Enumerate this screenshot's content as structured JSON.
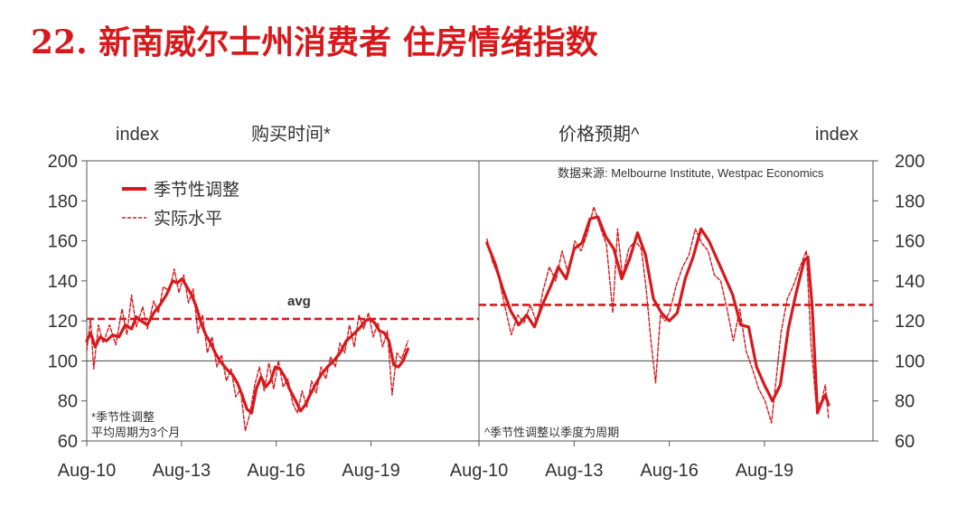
{
  "page": {
    "title": "22. 新南威尔士州消费者 住房情绪指数",
    "accent_color": "#d7191c",
    "axis_color": "#555555"
  },
  "chart_data": [
    {
      "type": "line",
      "title": "购买时间*",
      "ylabel": "index",
      "ylim": [
        60,
        200
      ],
      "yticks": [
        60,
        80,
        100,
        120,
        140,
        160,
        180,
        200
      ],
      "xlim": [
        2010.58,
        2023.0
      ],
      "xticks": [
        {
          "x": 2010.58,
          "label": "Aug-10"
        },
        {
          "x": 2013.58,
          "label": "Aug-13"
        },
        {
          "x": 2016.58,
          "label": "Aug-16"
        },
        {
          "x": 2019.58,
          "label": "Aug-19"
        }
      ],
      "reference_lines": [
        {
          "y": 100,
          "style": "solid"
        },
        {
          "y": 121,
          "style": "dashed",
          "label": "avg"
        }
      ],
      "legend": {
        "placement": "top-left",
        "entries": [
          "季节性调整",
          "实际水平"
        ]
      },
      "notes": [
        "*季节性调整",
        "平均周期为3个月"
      ],
      "series": [
        {
          "name": "季节性调整",
          "style": "solid",
          "points": [
            [
              2010.58,
              110
            ],
            [
              2010.7,
              114
            ],
            [
              2010.85,
              107
            ],
            [
              2011.0,
              112
            ],
            [
              2011.2,
              110
            ],
            [
              2011.4,
              113
            ],
            [
              2011.6,
              112
            ],
            [
              2011.8,
              118
            ],
            [
              2012.0,
              116
            ],
            [
              2012.15,
              122
            ],
            [
              2012.3,
              120
            ],
            [
              2012.5,
              118
            ],
            [
              2012.7,
              124
            ],
            [
              2012.9,
              128
            ],
            [
              2013.1,
              133
            ],
            [
              2013.3,
              140
            ],
            [
              2013.45,
              139
            ],
            [
              2013.6,
              141
            ],
            [
              2013.75,
              137
            ],
            [
              2013.9,
              133
            ],
            [
              2014.05,
              127
            ],
            [
              2014.2,
              119
            ],
            [
              2014.35,
              113
            ],
            [
              2014.5,
              109
            ],
            [
              2014.65,
              104
            ],
            [
              2014.8,
              100
            ],
            [
              2015.0,
              96
            ],
            [
              2015.2,
              93
            ],
            [
              2015.35,
              89
            ],
            [
              2015.5,
              83
            ],
            [
              2015.65,
              76
            ],
            [
              2015.8,
              74
            ],
            [
              2015.95,
              86
            ],
            [
              2016.1,
              92
            ],
            [
              2016.25,
              87
            ],
            [
              2016.4,
              90
            ],
            [
              2016.55,
              97
            ],
            [
              2016.7,
              96
            ],
            [
              2016.85,
              92
            ],
            [
              2017.0,
              86
            ],
            [
              2017.2,
              80
            ],
            [
              2017.35,
              75
            ],
            [
              2017.5,
              78
            ],
            [
              2017.65,
              83
            ],
            [
              2017.85,
              89
            ],
            [
              2018.0,
              93
            ],
            [
              2018.2,
              97
            ],
            [
              2018.4,
              100
            ],
            [
              2018.6,
              104
            ],
            [
              2018.8,
              110
            ],
            [
              2019.0,
              113
            ],
            [
              2019.2,
              116
            ],
            [
              2019.4,
              120
            ],
            [
              2019.55,
              121
            ],
            [
              2019.7,
              119
            ],
            [
              2019.85,
              115
            ],
            [
              2020.0,
              114
            ],
            [
              2020.15,
              110
            ],
            [
              2020.3,
              98
            ],
            [
              2020.45,
              97
            ],
            [
              2020.6,
              100
            ],
            [
              2020.75,
              106
            ]
          ]
        },
        {
          "name": "实际水平",
          "style": "dashed",
          "points": [
            [
              2010.58,
              105
            ],
            [
              2010.7,
              121
            ],
            [
              2010.8,
              96
            ],
            [
              2010.95,
              118
            ],
            [
              2011.1,
              109
            ],
            [
              2011.3,
              118
            ],
            [
              2011.5,
              108
            ],
            [
              2011.7,
              126
            ],
            [
              2011.85,
              113
            ],
            [
              2012.0,
              133
            ],
            [
              2012.15,
              117
            ],
            [
              2012.35,
              127
            ],
            [
              2012.5,
              116
            ],
            [
              2012.7,
              130
            ],
            [
              2012.85,
              124
            ],
            [
              2013.0,
              137
            ],
            [
              2013.2,
              135
            ],
            [
              2013.35,
              146
            ],
            [
              2013.5,
              134
            ],
            [
              2013.65,
              143
            ],
            [
              2013.8,
              129
            ],
            [
              2013.95,
              136
            ],
            [
              2014.1,
              114
            ],
            [
              2014.25,
              123
            ],
            [
              2014.4,
              104
            ],
            [
              2014.55,
              112
            ],
            [
              2014.7,
              97
            ],
            [
              2014.85,
              103
            ],
            [
              2015.0,
              90
            ],
            [
              2015.15,
              96
            ],
            [
              2015.3,
              82
            ],
            [
              2015.45,
              86
            ],
            [
              2015.6,
              65
            ],
            [
              2015.75,
              74
            ],
            [
              2015.9,
              88
            ],
            [
              2016.05,
              97
            ],
            [
              2016.2,
              85
            ],
            [
              2016.35,
              99
            ],
            [
              2016.5,
              86
            ],
            [
              2016.65,
              100
            ],
            [
              2016.8,
              87
            ],
            [
              2016.95,
              91
            ],
            [
              2017.1,
              79
            ],
            [
              2017.25,
              74
            ],
            [
              2017.4,
              85
            ],
            [
              2017.55,
              77
            ],
            [
              2017.7,
              90
            ],
            [
              2017.85,
              84
            ],
            [
              2018.0,
              97
            ],
            [
              2018.15,
              91
            ],
            [
              2018.3,
              102
            ],
            [
              2018.45,
              97
            ],
            [
              2018.6,
              109
            ],
            [
              2018.75,
              104
            ],
            [
              2018.9,
              118
            ],
            [
              2019.05,
              107
            ],
            [
              2019.2,
              123
            ],
            [
              2019.35,
              116
            ],
            [
              2019.5,
              124
            ],
            [
              2019.65,
              112
            ],
            [
              2019.8,
              119
            ],
            [
              2019.95,
              107
            ],
            [
              2020.1,
              115
            ],
            [
              2020.25,
              83
            ],
            [
              2020.4,
              104
            ],
            [
              2020.55,
              101
            ],
            [
              2020.75,
              110
            ]
          ]
        }
      ]
    },
    {
      "type": "line",
      "title": "价格预期^",
      "ylabel": "index",
      "ylim": [
        60,
        200
      ],
      "yticks": [
        60,
        80,
        100,
        120,
        140,
        160,
        180,
        200
      ],
      "xlim": [
        2010.58,
        2023.0
      ],
      "xticks": [
        {
          "x": 2010.58,
          "label": "Aug-10"
        },
        {
          "x": 2013.58,
          "label": "Aug-13"
        },
        {
          "x": 2016.58,
          "label": "Aug-16"
        },
        {
          "x": 2019.58,
          "label": "Aug-19"
        }
      ],
      "reference_lines": [
        {
          "y": 100,
          "style": "solid"
        },
        {
          "y": 128,
          "style": "dashed"
        }
      ],
      "notes": [
        "^季节性调整以季度为周期"
      ],
      "source": "数据来源: Melbourne Institute, Westpac Economics",
      "series": [
        {
          "name": "季节性调整",
          "style": "solid",
          "points": [
            [
              2010.83,
              159
            ],
            [
              2011.08,
              149
            ],
            [
              2011.33,
              136
            ],
            [
              2011.58,
              125
            ],
            [
              2011.83,
              118
            ],
            [
              2012.08,
              123
            ],
            [
              2012.33,
              117
            ],
            [
              2012.58,
              128
            ],
            [
              2012.83,
              137
            ],
            [
              2013.08,
              147
            ],
            [
              2013.33,
              141
            ],
            [
              2013.58,
              156
            ],
            [
              2013.83,
              159
            ],
            [
              2014.08,
              171
            ],
            [
              2014.33,
              172
            ],
            [
              2014.58,
              162
            ],
            [
              2014.83,
              156
            ],
            [
              2015.08,
              141
            ],
            [
              2015.33,
              151
            ],
            [
              2015.58,
              164
            ],
            [
              2015.83,
              153
            ],
            [
              2016.08,
              131
            ],
            [
              2016.33,
              124
            ],
            [
              2016.58,
              120
            ],
            [
              2016.83,
              124
            ],
            [
              2017.08,
              141
            ],
            [
              2017.33,
              152
            ],
            [
              2017.58,
              166
            ],
            [
              2017.83,
              160
            ],
            [
              2018.08,
              151
            ],
            [
              2018.33,
              142
            ],
            [
              2018.58,
              133
            ],
            [
              2018.83,
              118
            ],
            [
              2019.08,
              117
            ],
            [
              2019.33,
              97
            ],
            [
              2019.58,
              88
            ],
            [
              2019.83,
              80
            ],
            [
              2020.08,
              88
            ],
            [
              2020.33,
              116
            ],
            [
              2020.58,
              134
            ],
            [
              2020.83,
              150
            ],
            [
              2020.95,
              152
            ],
            [
              2021.08,
              128
            ],
            [
              2021.25,
              74
            ],
            [
              2021.4,
              80
            ],
            [
              2021.5,
              83
            ],
            [
              2021.6,
              78
            ]
          ]
        },
        {
          "name": "实际水平",
          "style": "dashed",
          "points": [
            [
              2010.83,
              161
            ],
            [
              2011.0,
              150
            ],
            [
              2011.2,
              142
            ],
            [
              2011.4,
              127
            ],
            [
              2011.6,
              113
            ],
            [
              2011.8,
              123
            ],
            [
              2012.0,
              119
            ],
            [
              2012.2,
              128
            ],
            [
              2012.4,
              119
            ],
            [
              2012.6,
              135
            ],
            [
              2012.8,
              147
            ],
            [
              2013.0,
              140
            ],
            [
              2013.2,
              155
            ],
            [
              2013.4,
              143
            ],
            [
              2013.6,
              160
            ],
            [
              2013.8,
              155
            ],
            [
              2014.0,
              164
            ],
            [
              2014.2,
              177
            ],
            [
              2014.4,
              167
            ],
            [
              2014.6,
              158
            ],
            [
              2014.8,
              124
            ],
            [
              2014.95,
              166
            ],
            [
              2015.1,
              142
            ],
            [
              2015.3,
              156
            ],
            [
              2015.5,
              160
            ],
            [
              2015.7,
              156
            ],
            [
              2015.85,
              136
            ],
            [
              2016.0,
              110
            ],
            [
              2016.15,
              89
            ],
            [
              2016.3,
              123
            ],
            [
              2016.45,
              120
            ],
            [
              2016.6,
              125
            ],
            [
              2016.8,
              138
            ],
            [
              2017.0,
              147
            ],
            [
              2017.2,
              153
            ],
            [
              2017.4,
              166
            ],
            [
              2017.6,
              159
            ],
            [
              2017.8,
              155
            ],
            [
              2018.0,
              143
            ],
            [
              2018.2,
              140
            ],
            [
              2018.4,
              126
            ],
            [
              2018.6,
              110
            ],
            [
              2018.8,
              126
            ],
            [
              2019.0,
              105
            ],
            [
              2019.2,
              96
            ],
            [
              2019.4,
              86
            ],
            [
              2019.6,
              80
            ],
            [
              2019.8,
              69
            ],
            [
              2019.95,
              91
            ],
            [
              2020.1,
              114
            ],
            [
              2020.3,
              131
            ],
            [
              2020.5,
              138
            ],
            [
              2020.7,
              147
            ],
            [
              2020.9,
              155
            ],
            [
              2021.05,
              108
            ],
            [
              2021.2,
              80
            ],
            [
              2021.35,
              78
            ],
            [
              2021.5,
              88
            ],
            [
              2021.6,
              71
            ]
          ]
        }
      ]
    }
  ],
  "labels": {
    "index_left": "index",
    "index_right": "index",
    "avg_label": "avg",
    "legend_sa": "季节性调整",
    "legend_actual": "实际水平",
    "source": "数据来源: Melbourne Institute, Westpac Economics",
    "note_left_1": "*季节性调整",
    "note_left_2": "平均周期为3个月",
    "note_right": "^季节性调整以季度为周期"
  }
}
